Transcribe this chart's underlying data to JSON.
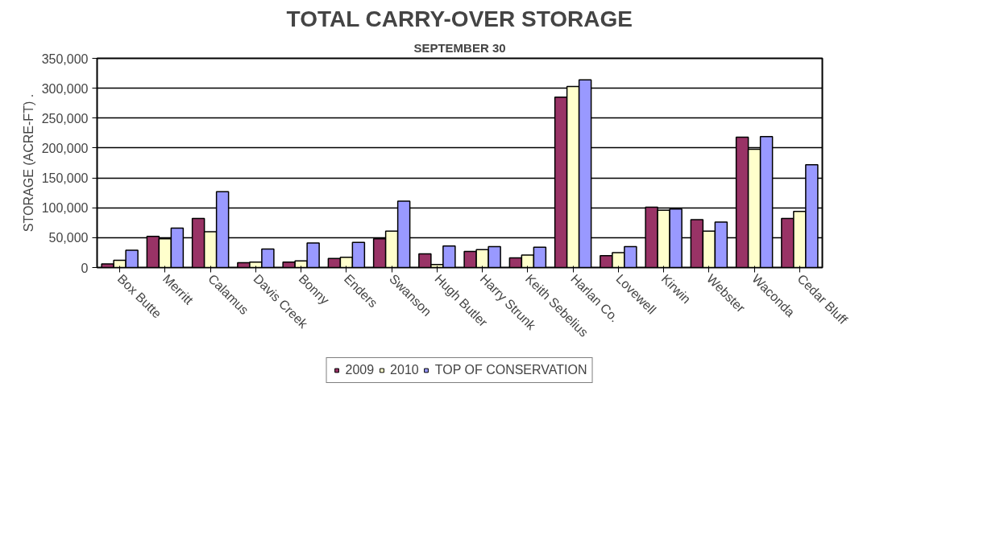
{
  "chart_data": {
    "type": "bar",
    "title": "TOTAL CARRY-OVER STORAGE",
    "subtitle": "SEPTEMBER 30",
    "ylabel": "STORAGE (ACRE-FT) .",
    "categories": [
      "Box Butte",
      "Merritt",
      "Calamus",
      "Davis Creek",
      "Bonny",
      "Enders",
      "Swanson",
      "Hugh Butler",
      "Harry Strunk",
      "Keith Sebelius",
      "Harlan Co.",
      "Lovewell",
      "Kirwin",
      "Webster",
      "Waconda",
      "Cedar Bluff"
    ],
    "series": [
      {
        "name": "2009",
        "color": "#993366",
        "values": [
          6000,
          52000,
          82000,
          8000,
          9000,
          15000,
          48000,
          23000,
          27000,
          16000,
          285000,
          20000,
          101000,
          80000,
          218000,
          82000
        ]
      },
      {
        "name": "2010",
        "color": "#ffffcc",
        "values": [
          12000,
          48000,
          60000,
          9000,
          11000,
          17000,
          61000,
          5000,
          30000,
          21000,
          303000,
          25000,
          96000,
          61000,
          198000,
          94000
        ]
      },
      {
        "name": "TOP OF CONSERVATION",
        "color": "#9999ff",
        "values": [
          29000,
          66000,
          127000,
          31000,
          41000,
          42000,
          111000,
          36000,
          35000,
          34000,
          314000,
          35000,
          98000,
          76000,
          219000,
          172000
        ]
      }
    ],
    "ylim": [
      0,
      350000
    ],
    "yticks": [
      0,
      {
        "value": 50000,
        "label": "50,000"
      },
      {
        "value": 100000,
        "label": "100,000"
      },
      {
        "value": 150000,
        "label": "150,000"
      },
      {
        "value": 200000,
        "label": "200,000"
      },
      {
        "value": 250000,
        "label": "250,000"
      },
      {
        "value": 300000,
        "label": "300,000"
      },
      {
        "value": 350000,
        "label": "350,000"
      }
    ],
    "grid": "y",
    "legend": "bottom"
  }
}
